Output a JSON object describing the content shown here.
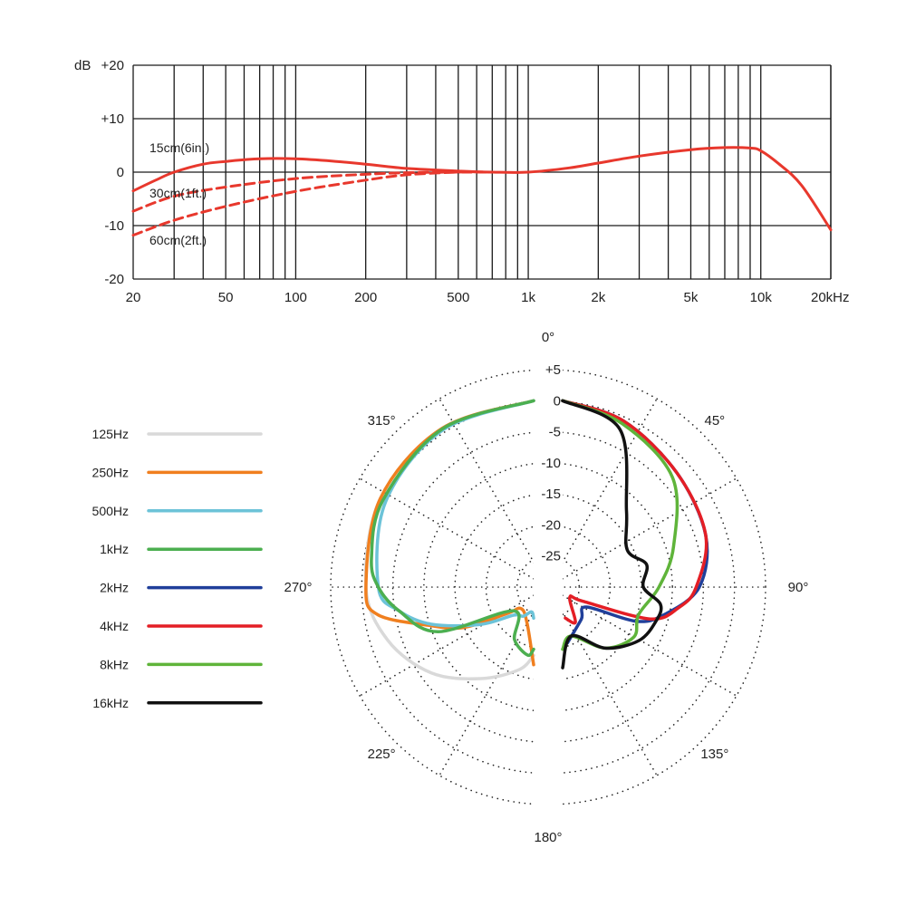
{
  "chart_data": [
    {
      "type": "line",
      "title": "",
      "ylabel": "dB",
      "xlabel": "",
      "xscale": "log",
      "xlim": [
        20,
        20000
      ],
      "ylim": [
        -20,
        20
      ],
      "grid": true,
      "x_ticks": [
        {
          "value": 20,
          "label": "20"
        },
        {
          "value": 50,
          "label": "50"
        },
        {
          "value": 100,
          "label": "100"
        },
        {
          "value": 200,
          "label": "200"
        },
        {
          "value": 500,
          "label": "500"
        },
        {
          "value": 1000,
          "label": "1k"
        },
        {
          "value": 2000,
          "label": "2k"
        },
        {
          "value": 5000,
          "label": "5k"
        },
        {
          "value": 10000,
          "label": "10k"
        },
        {
          "value": 20000,
          "label": "20kHz"
        }
      ],
      "y_ticks": [
        {
          "value": 20,
          "label": "+20"
        },
        {
          "value": 10,
          "label": "+10"
        },
        {
          "value": 0,
          "label": "0"
        },
        {
          "value": -10,
          "label": "-10"
        },
        {
          "value": -20,
          "label": "-20"
        }
      ],
      "series_color": "#e8382d",
      "series": [
        {
          "name": "15cm(6in.)",
          "style": "solid",
          "x": [
            20,
            25,
            30,
            40,
            50,
            70,
            100,
            150,
            200,
            300,
            500,
            700,
            1000,
            1500,
            2000,
            3000,
            5000,
            7000,
            9000,
            10000,
            12000,
            15000,
            20000
          ],
          "y": [
            -3.5,
            -1.5,
            0,
            1.5,
            2.0,
            2.5,
            2.5,
            2.0,
            1.5,
            0.7,
            0.2,
            0.0,
            0.0,
            0.8,
            1.7,
            3.0,
            4.2,
            4.6,
            4.5,
            4.0,
            1.5,
            -2.5,
            -10.8
          ]
        },
        {
          "name": "30cm(1ft.)",
          "style": "dashed",
          "x": [
            20,
            30,
            50,
            100,
            200,
            300,
            500,
            700
          ],
          "y": [
            -7.3,
            -4.5,
            -2.8,
            -1.2,
            -0.4,
            -0.1,
            0.0,
            0.0
          ]
        },
        {
          "name": "60cm(2ft.)",
          "style": "dashed",
          "x": [
            20,
            30,
            50,
            100,
            200,
            300,
            500,
            700
          ],
          "y": [
            -11.8,
            -9.0,
            -6.4,
            -3.6,
            -1.5,
            -0.5,
            0.0,
            0.0
          ]
        }
      ]
    },
    {
      "type": "polar",
      "title": "",
      "rlabels": [
        "+5",
        "0",
        "-5",
        "-10",
        "-15",
        "-20",
        "-25"
      ],
      "rlim": [
        -30,
        5
      ],
      "grid": true,
      "legend_position": "left",
      "angle_labels": [
        {
          "angle": 0,
          "label": "0°"
        },
        {
          "angle": 45,
          "label": "45°"
        },
        {
          "angle": 90,
          "label": "90°"
        },
        {
          "angle": 135,
          "label": "135°"
        },
        {
          "angle": 180,
          "label": "180°"
        },
        {
          "angle": 225,
          "label": "225°"
        },
        {
          "angle": 270,
          "label": "270°"
        },
        {
          "angle": 315,
          "label": "315°"
        }
      ],
      "series": [
        {
          "name": "125Hz",
          "color": "#d9d9d9",
          "side": "left",
          "angle": [
            0,
            30,
            60,
            90,
            110,
            130,
            150,
            170,
            180
          ],
          "db": [
            0,
            -0.5,
            -1.5,
            -3,
            -5,
            -8.5,
            -13,
            -16.5,
            -19
          ]
        },
        {
          "name": "250Hz",
          "color": "#f07f1f",
          "side": "left",
          "angle": [
            0,
            30,
            60,
            90,
            100,
            110,
            120,
            135,
            150,
            170,
            180
          ],
          "db": [
            0,
            -0.5,
            -1.5,
            -3,
            -4.5,
            -12,
            -17,
            -24,
            -26,
            -24,
            -17.5
          ]
        },
        {
          "name": "500Hz",
          "color": "#6cc3d8",
          "side": "left",
          "angle": [
            0,
            30,
            60,
            90,
            100,
            110,
            125,
            145,
            160,
            175,
            180
          ],
          "db": [
            0,
            -0.8,
            -2.5,
            -5,
            -8,
            -12.5,
            -19.5,
            -24.5,
            -25,
            -26,
            -25
          ]
        },
        {
          "name": "1kHz",
          "color": "#4caf50",
          "side": "left",
          "angle": [
            0,
            30,
            60,
            80,
            90,
            100,
            115,
            140,
            160,
            175,
            180
          ],
          "db": [
            0,
            -0.6,
            -2,
            -3.5,
            -5,
            -8,
            -13,
            -25,
            -21,
            -19,
            -20
          ]
        },
        {
          "name": "2kHz",
          "color": "#203f9a",
          "side": "right",
          "angle": [
            0,
            20,
            45,
            70,
            90,
            105,
            115,
            130,
            150,
            175
          ],
          "db": [
            0,
            -1.5,
            -4,
            -5.5,
            -8,
            -13,
            -17,
            -25,
            -24,
            -21
          ]
        },
        {
          "name": "4kHz",
          "color": "#e41e25",
          "side": "right",
          "angle": [
            0,
            20,
            45,
            70,
            90,
            100,
            110,
            125,
            145,
            160,
            175
          ],
          "db": [
            0,
            -1.5,
            -4,
            -5.5,
            -8.5,
            -11,
            -15,
            -26,
            -28,
            -24,
            -25
          ]
        },
        {
          "name": "8kHz",
          "color": "#5fb43a",
          "side": "right",
          "angle": [
            0,
            20,
            45,
            70,
            90,
            110,
            125,
            145,
            170,
            180
          ],
          "db": [
            0,
            -2,
            -5,
            -11,
            -14.5,
            -17,
            -16,
            -18,
            -22,
            -20
          ]
        },
        {
          "name": "16kHz",
          "color": "#111111",
          "side": "right",
          "angle": [
            0,
            20,
            40,
            60,
            75,
            90,
            100,
            110,
            125,
            145,
            170,
            180
          ],
          "db": [
            0,
            -3,
            -14,
            -18,
            -16,
            -17,
            -14,
            -14,
            -15,
            -18,
            -22,
            -17
          ]
        }
      ]
    }
  ]
}
